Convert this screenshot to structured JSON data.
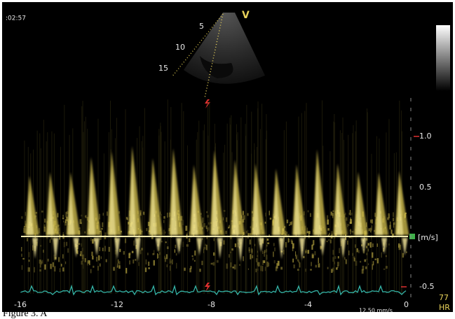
{
  "header": {
    "clock": ":02:57"
  },
  "sector": {
    "label": "V",
    "depth_marks": [
      "5",
      "10",
      "15"
    ]
  },
  "velocity_axis": {
    "labels": [
      "1.0",
      "0.5",
      "-0.5"
    ],
    "unit": "[m/s]"
  },
  "time_axis": {
    "labels": [
      "-16",
      "-12",
      "-8",
      "-4",
      "0"
    ],
    "sweep": "12.50 mm/s"
  },
  "heart_rate": {
    "value": "77",
    "label": "HR"
  },
  "caption": "Figure 3. A"
}
